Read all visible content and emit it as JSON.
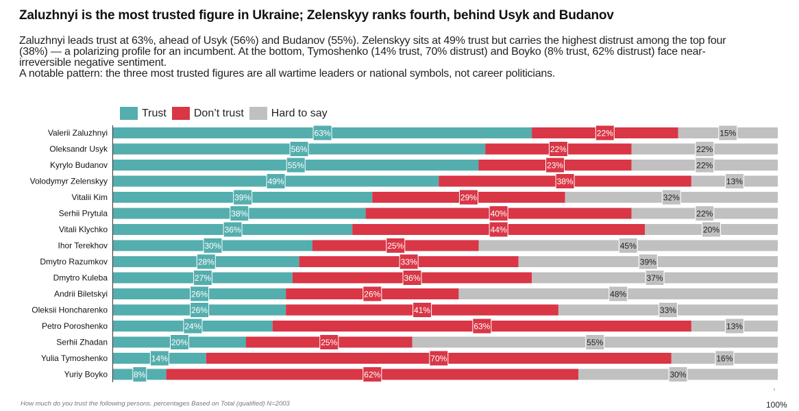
{
  "title": "Zaluzhnyi is the most trusted figure in Ukraine; Zelenskyy ranks fourth, behind Usyk and Budanov",
  "subtitle_lines": [
    "Zaluzhnyi leads trust at 63%, ahead of Usyk (56%) and Budanov (55%). Zelenskyy sits at 49% trust but carries the highest distrust among the top four",
    "(38%) — a polarizing profile for an incumbent. At the bottom, Tymoshenko (14% trust, 70% distrust) and Boyko (8% trust, 62% distrust) face near-",
    "irreversible negative sentiment.",
    "A notable pattern: the three most trusted figures are all wartime leaders or national symbols, not career politicians."
  ],
  "footnote": "How much do you trust the following persons. percentages Based on Total (qualified) N=2003",
  "axis_end_label": "100%",
  "colors": {
    "trust": "#55aeae",
    "dont_trust": "#d93646",
    "hard_to_say": "#c0c0c0"
  },
  "chart_data": {
    "type": "bar",
    "orientation": "horizontal",
    "stacked": true,
    "title": "Zaluzhnyi is the most trusted figure in Ukraine; Zelenskyy ranks fourth, behind Usyk and Budanov",
    "xlabel": "",
    "ylabel": "",
    "xlim": [
      0,
      100
    ],
    "legend": "top-left",
    "grid": false,
    "categories": [
      "Valerii Zaluzhnyi",
      "Oleksandr Usyk",
      "Kyrylo Budanov",
      "Volodymyr Zelenskyy",
      "Vitalii Kim",
      "Serhii Prytula",
      "Vitali Klychko",
      "Ihor Terekhov",
      "Dmytro Razumkov",
      "Dmytro Kuleba",
      "Andrii Biletskyi",
      "Oleksii Honcharenko",
      "Petro Poroshenko",
      "Serhii Zhadan",
      "Yulia Tymoshenko",
      "Yuriy Boyko"
    ],
    "series": [
      {
        "key": "trust",
        "name": "Trust",
        "values": [
          63,
          56,
          55,
          49,
          39,
          38,
          36,
          30,
          28,
          27,
          26,
          26,
          24,
          20,
          14,
          8
        ]
      },
      {
        "key": "dont_trust",
        "name": "Don’t trust",
        "values": [
          22,
          22,
          23,
          38,
          29,
          40,
          44,
          25,
          33,
          36,
          26,
          41,
          63,
          25,
          70,
          62
        ]
      },
      {
        "key": "hard_to_say",
        "name": "Hard to say",
        "values": [
          15,
          22,
          22,
          13,
          32,
          22,
          20,
          45,
          39,
          37,
          48,
          33,
          13,
          55,
          16,
          30
        ]
      }
    ]
  }
}
